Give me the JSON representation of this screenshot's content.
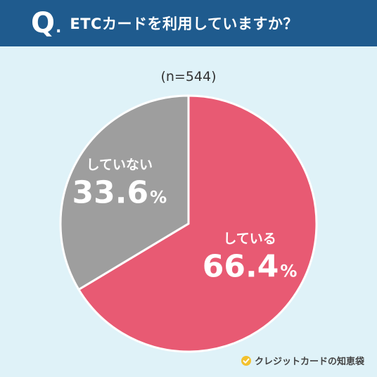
{
  "header": {
    "q_letter": "Q",
    "q_dot": ".",
    "question": "ETCカードを利用していますか？"
  },
  "sample_size": "(n=544)",
  "chart_data": {
    "type": "pie",
    "title": "ETCカードを利用していますか？",
    "slices": [
      {
        "label": "している",
        "value": 66.4,
        "percent_text": "66.4",
        "color": "#e85a73"
      },
      {
        "label": "していない",
        "value": 33.6,
        "percent_text": "33.6",
        "color": "#9e9e9e"
      }
    ],
    "percent_sign": "%"
  },
  "brand": {
    "name": "クレジットカードの知恵袋"
  },
  "colors": {
    "header_bg": "#1f5b8e",
    "page_bg": "#dff2f8",
    "slice_yes": "#e85a73",
    "slice_no": "#9e9e9e"
  }
}
